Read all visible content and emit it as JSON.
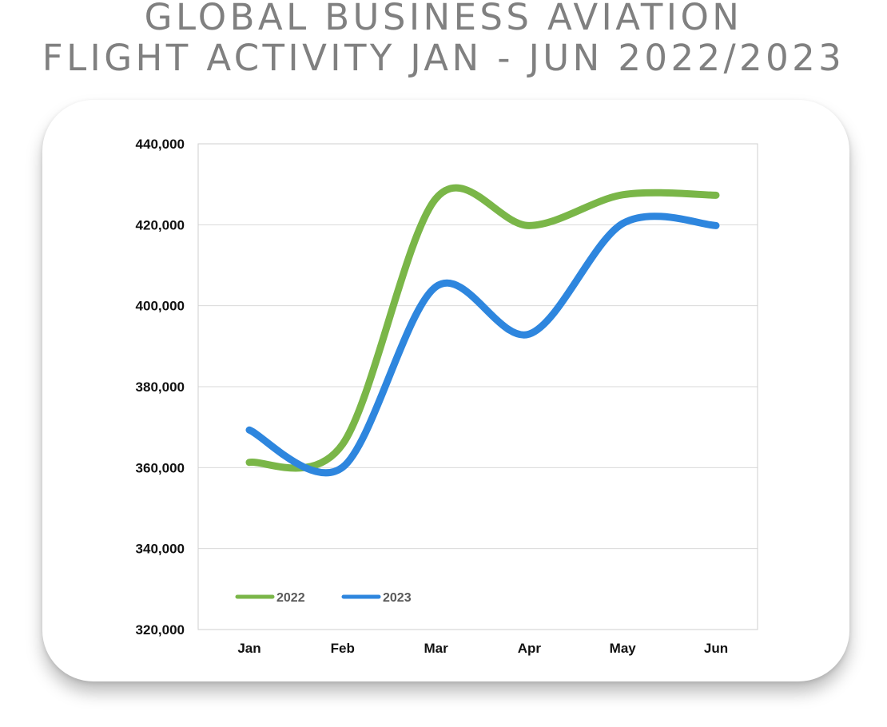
{
  "chart_data": {
    "type": "line",
    "title": "GLOBAL BUSINESS AVIATION FLIGHT ACTIVITY JAN - JUN 2022/2023",
    "title_lines": [
      "GLOBAL BUSINESS AVIATION",
      "FLIGHT ACTIVITY JAN - JUN 2022/2023"
    ],
    "xlabel": "",
    "ylabel": "",
    "categories": [
      "Jan",
      "Feb",
      "Mar",
      "Apr",
      "May",
      "Jun"
    ],
    "ylim": [
      320000,
      440000
    ],
    "yticks": [
      320000,
      340000,
      360000,
      380000,
      400000,
      420000,
      440000
    ],
    "ytick_labels": [
      "320,000",
      "340,000",
      "360,000",
      "380,000",
      "400,000",
      "420,000",
      "440,000"
    ],
    "grid": true,
    "legend_position": "bottom-left",
    "series": [
      {
        "name": "2022",
        "color": "#7ab648",
        "values": [
          361300,
          365800,
          426500,
          419800,
          427400,
          427300
        ]
      },
      {
        "name": "2023",
        "color": "#2e86de",
        "values": [
          369300,
          360100,
          404700,
          393000,
          420300,
          419800
        ]
      }
    ]
  }
}
